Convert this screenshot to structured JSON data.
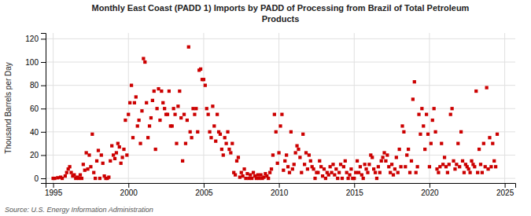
{
  "chart_data": {
    "type": "scatter",
    "title": "Monthly East Coast (PADD 1) Imports by PADD of Processing from Brazil of Total Petroleum\nProducts",
    "ylabel": "Thousand Barrels per Day",
    "source": "Source: U.S. Energy Information Administration",
    "color": "#cc0000",
    "marker": "square",
    "grid": true,
    "xlim": [
      1994.5,
      2025.7
    ],
    "ylim": [
      -4,
      125
    ],
    "xticks": [
      1995,
      2000,
      2005,
      2010,
      2015,
      2020,
      2025
    ],
    "yticks": [
      0,
      20,
      40,
      60,
      80,
      100,
      120
    ],
    "x": [
      1995.0,
      1995.1,
      1995.3,
      1995.5,
      1995.6,
      1995.8,
      1995.9,
      1996.0,
      1996.1,
      1996.2,
      1996.3,
      1996.4,
      1996.5,
      1996.6,
      1996.7,
      1996.8,
      1996.9,
      1997.0,
      1997.1,
      1997.2,
      1997.3,
      1997.4,
      1997.5,
      1997.6,
      1997.7,
      1997.8,
      1997.9,
      1998.0,
      1998.1,
      1998.2,
      1998.3,
      1998.4,
      1998.5,
      1998.6,
      1998.7,
      1998.8,
      1998.9,
      1999.0,
      1999.1,
      1999.2,
      1999.3,
      1999.4,
      1999.5,
      1999.6,
      1999.7,
      1999.8,
      1999.9,
      2000.0,
      2000.1,
      2000.2,
      2000.3,
      2000.4,
      2000.5,
      2000.6,
      2000.7,
      2000.8,
      2000.9,
      2001.0,
      2001.1,
      2001.2,
      2001.3,
      2001.4,
      2001.5,
      2001.6,
      2001.7,
      2001.8,
      2001.9,
      2002.0,
      2002.1,
      2002.2,
      2002.3,
      2002.4,
      2002.5,
      2002.6,
      2002.7,
      2002.8,
      2002.9,
      2003.0,
      2003.1,
      2003.2,
      2003.3,
      2003.4,
      2003.5,
      2003.6,
      2003.7,
      2003.8,
      2003.9,
      2004.0,
      2004.1,
      2004.2,
      2004.3,
      2004.4,
      2004.5,
      2004.6,
      2004.7,
      2004.8,
      2004.9,
      2005.0,
      2005.1,
      2005.2,
      2005.3,
      2005.4,
      2005.5,
      2005.6,
      2005.7,
      2005.8,
      2005.9,
      2006.0,
      2006.1,
      2006.2,
      2006.3,
      2006.4,
      2006.5,
      2006.6,
      2006.7,
      2006.8,
      2006.9,
      2007.0,
      2007.1,
      2007.2,
      2007.3,
      2007.4,
      2007.5,
      2007.6,
      2007.7,
      2007.8,
      2007.9,
      2008.0,
      2008.1,
      2008.2,
      2008.3,
      2008.4,
      2008.5,
      2008.6,
      2008.7,
      2008.8,
      2008.9,
      2009.0,
      2009.1,
      2009.2,
      2009.3,
      2009.4,
      2009.5,
      2009.6,
      2009.7,
      2009.8,
      2009.9,
      2010.0,
      2010.1,
      2010.2,
      2010.3,
      2010.4,
      2010.5,
      2010.6,
      2010.7,
      2010.8,
      2010.9,
      2011.0,
      2011.1,
      2011.2,
      2011.3,
      2011.4,
      2011.5,
      2011.6,
      2011.7,
      2011.8,
      2011.9,
      2012.0,
      2012.1,
      2012.2,
      2012.3,
      2012.4,
      2012.5,
      2012.6,
      2012.7,
      2012.8,
      2012.9,
      2013.0,
      2013.1,
      2013.2,
      2013.3,
      2013.4,
      2013.5,
      2013.6,
      2013.7,
      2013.8,
      2013.9,
      2014.0,
      2014.1,
      2014.2,
      2014.3,
      2014.4,
      2014.5,
      2014.6,
      2014.7,
      2014.8,
      2014.9,
      2015.0,
      2015.1,
      2015.2,
      2015.3,
      2015.4,
      2015.5,
      2015.6,
      2015.7,
      2015.8,
      2015.9,
      2016.0,
      2016.1,
      2016.2,
      2016.3,
      2016.4,
      2016.5,
      2016.6,
      2016.7,
      2016.8,
      2016.9,
      2017.0,
      2017.1,
      2017.2,
      2017.3,
      2017.4,
      2017.5,
      2017.6,
      2017.7,
      2017.8,
      2017.9,
      2018.0,
      2018.1,
      2018.2,
      2018.3,
      2018.4,
      2018.5,
      2018.6,
      2018.7,
      2018.8,
      2018.9,
      2019.0,
      2019.1,
      2019.2,
      2019.3,
      2019.4,
      2019.5,
      2019.6,
      2019.7,
      2019.8,
      2019.9,
      2020.0,
      2020.1,
      2020.2,
      2020.3,
      2020.4,
      2020.5,
      2020.6,
      2020.7,
      2020.8,
      2020.9,
      2021.0,
      2021.1,
      2021.2,
      2021.3,
      2021.4,
      2021.5,
      2021.6,
      2021.7,
      2021.8,
      2021.9,
      2022.0,
      2022.1,
      2022.2,
      2022.3,
      2022.4,
      2022.5,
      2022.6,
      2022.7,
      2022.8,
      2022.9,
      2023.0,
      2023.1,
      2023.2,
      2023.3,
      2023.4,
      2023.5,
      2023.6,
      2023.7,
      2023.8,
      2023.9,
      2024.0,
      2024.1,
      2024.2,
      2024.3,
      2024.4,
      2024.5
    ],
    "values": [
      0.0,
      0.0,
      0.5,
      1.0,
      0.0,
      2.0,
      5.0,
      8.0,
      10.0,
      5.0,
      2.0,
      3.0,
      0.0,
      1.0,
      0.0,
      3.0,
      0.0,
      12.0,
      7.0,
      22.0,
      8.0,
      20.0,
      10.0,
      38.0,
      5.0,
      0.0,
      15.0,
      24.0,
      0.0,
      20.0,
      13.0,
      2.0,
      0.0,
      0.0,
      1.0,
      15.0,
      28.0,
      20.0,
      17.0,
      22.0,
      30.0,
      27.0,
      13.0,
      18.0,
      25.0,
      50.0,
      20.0,
      55.0,
      65.0,
      80.0,
      35.0,
      65.0,
      70.0,
      45.0,
      50.0,
      30.0,
      58.0,
      103.0,
      100.0,
      65.0,
      35.0,
      45.0,
      52.0,
      67.0,
      75.0,
      25.0,
      60.0,
      77.0,
      50.0,
      75.0,
      65.0,
      60.0,
      55.0,
      55.0,
      75.0,
      45.0,
      45.0,
      60.0,
      55.0,
      30.0,
      62.0,
      75.0,
      52.0,
      15.0,
      55.0,
      30.0,
      50.0,
      113.0,
      40.0,
      35.0,
      60.0,
      55.0,
      60.0,
      40.0,
      93.0,
      94.0,
      85.0,
      85.0,
      80.0,
      60.0,
      55.0,
      40.0,
      35.0,
      62.0,
      45.0,
      32.0,
      55.0,
      40.0,
      38.0,
      25.0,
      20.0,
      35.0,
      30.0,
      40.0,
      25.0,
      22.0,
      30.0,
      5.0,
      3.0,
      15.0,
      18.0,
      1.0,
      5.0,
      2.0,
      8.0,
      0.0,
      4.0,
      0.0,
      3.0,
      0.0,
      5.0,
      2.0,
      0.0,
      3.0,
      0.0,
      3.0,
      0.0,
      1.0,
      4.0,
      2.0,
      0.0,
      5.0,
      8.0,
      20.0,
      55.0,
      40.0,
      13.0,
      22.0,
      45.0,
      55.0,
      7.0,
      15.0,
      20.0,
      10.0,
      5.0,
      40.0,
      8.0,
      12.0,
      22.0,
      28.0,
      25.0,
      18.0,
      5.0,
      38.0,
      12.0,
      22.0,
      8.0,
      20.0,
      15.0,
      10.0,
      8.0,
      0.0,
      5.0,
      5.0,
      15.0,
      10.0,
      2.0,
      8.0,
      0.0,
      5.0,
      3.0,
      10.0,
      5.0,
      12.0,
      3.0,
      8.0,
      0.0,
      5.0,
      12.0,
      0.0,
      10.0,
      15.0,
      5.0,
      0.0,
      3.0,
      8.0,
      0.0,
      0.0,
      5.0,
      15.0,
      5.0,
      10.0,
      3.0,
      0.0,
      12.0,
      8.0,
      5.0,
      12.0,
      20.0,
      18.0,
      8.0,
      5.0,
      0.0,
      10.0,
      5.0,
      15.0,
      18.0,
      22.0,
      15.0,
      20.0,
      10.0,
      5.0,
      12.0,
      3.0,
      8.0,
      18.0,
      5.0,
      25.0,
      10.0,
      45.0,
      40.0,
      10.0,
      20.0,
      25.0,
      5.0,
      15.0,
      68.0,
      83.0,
      5.0,
      10.0,
      55.0,
      38.0,
      60.0,
      45.0,
      25.0,
      55.0,
      38.0,
      10.0,
      30.0,
      50.0,
      60.0,
      40.0,
      8.0,
      5.0,
      10.0,
      30.0,
      12.0,
      18.0,
      10.0,
      5.0,
      12.0,
      55.0,
      60.0,
      15.0,
      8.0,
      12.0,
      30.0,
      10.0,
      40.0,
      15.0,
      5.0,
      12.0,
      10.0,
      8.0,
      5.0,
      15.0,
      12.0,
      10.0,
      75.0,
      5.0,
      25.0,
      12.0,
      5.0,
      30.0,
      10.0,
      78.0,
      8.0,
      35.0,
      10.0,
      30.0,
      15.0,
      10.0,
      38.0
    ]
  }
}
